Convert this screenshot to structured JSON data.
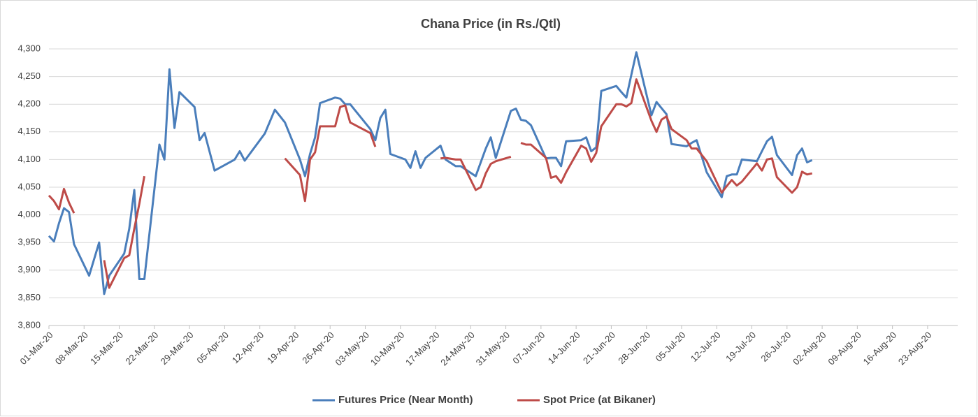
{
  "chart_data": {
    "type": "line",
    "title": "Chana Price (in Rs./Qtl)",
    "x": [
      "2020-03-01",
      "2020-03-02",
      "2020-03-03",
      "2020-03-04",
      "2020-03-05",
      "2020-03-06",
      "2020-03-09",
      "2020-03-11",
      "2020-03-12",
      "2020-03-13",
      "2020-03-16",
      "2020-03-17",
      "2020-03-18",
      "2020-03-19",
      "2020-03-20",
      "2020-03-23",
      "2020-03-24",
      "2020-03-25",
      "2020-03-26",
      "2020-03-27",
      "2020-03-30",
      "2020-03-31",
      "2020-04-01",
      "2020-04-03",
      "2020-04-07",
      "2020-04-08",
      "2020-04-09",
      "2020-04-13",
      "2020-04-15",
      "2020-04-17",
      "2020-04-20",
      "2020-04-21",
      "2020-04-22",
      "2020-04-23",
      "2020-04-24",
      "2020-04-27",
      "2020-04-28",
      "2020-04-29",
      "2020-04-30",
      "2020-05-04",
      "2020-05-05",
      "2020-05-06",
      "2020-05-07",
      "2020-05-08",
      "2020-05-11",
      "2020-05-12",
      "2020-05-13",
      "2020-05-14",
      "2020-05-15",
      "2020-05-18",
      "2020-05-19",
      "2020-05-21",
      "2020-05-22",
      "2020-05-25",
      "2020-05-26",
      "2020-05-27",
      "2020-05-28",
      "2020-05-29",
      "2020-06-01",
      "2020-06-02",
      "2020-06-03",
      "2020-06-04",
      "2020-06-05",
      "2020-06-08",
      "2020-06-09",
      "2020-06-10",
      "2020-06-11",
      "2020-06-12",
      "2020-06-15",
      "2020-06-16",
      "2020-06-17",
      "2020-06-18",
      "2020-06-19",
      "2020-06-22",
      "2020-06-23",
      "2020-06-24",
      "2020-06-25",
      "2020-06-26",
      "2020-06-29",
      "2020-06-30",
      "2020-07-01",
      "2020-07-02",
      "2020-07-03",
      "2020-07-06",
      "2020-07-07",
      "2020-07-08",
      "2020-07-10",
      "2020-07-13",
      "2020-07-14",
      "2020-07-15",
      "2020-07-16",
      "2020-07-17",
      "2020-07-20",
      "2020-07-21",
      "2020-07-22",
      "2020-07-23",
      "2020-07-24",
      "2020-07-27",
      "2020-07-28",
      "2020-07-29",
      "2020-07-30",
      "2020-07-31"
    ],
    "series": [
      {
        "name": "Futures Price (Near Month)",
        "color": "#4a7ebb",
        "values": [
          3962,
          3952,
          3985,
          4012,
          4005,
          3947,
          3890,
          3950,
          3857,
          3890,
          3930,
          3975,
          4045,
          3884,
          3884,
          4127,
          4100,
          4263,
          4157,
          4222,
          4195,
          4135,
          4148,
          4080,
          4100,
          4115,
          4098,
          4147,
          4190,
          4167,
          4100,
          4070,
          4110,
          4140,
          4202,
          4212,
          4210,
          4200,
          4200,
          4155,
          4135,
          4175,
          4190,
          4110,
          4100,
          4085,
          4115,
          4085,
          4103,
          4125,
          4100,
          4088,
          4088,
          4070,
          4095,
          4120,
          4140,
          4103,
          4188,
          4192,
          4172,
          4170,
          4162,
          4102,
          4103,
          4103,
          4088,
          4133,
          4135,
          4140,
          4115,
          4122,
          4224,
          4233,
          4222,
          4212,
          4253,
          4294,
          4180,
          4204,
          4193,
          4182,
          4128,
          4124,
          4130,
          4135,
          4077,
          4032,
          4070,
          4073,
          4073,
          4100,
          4097,
          4115,
          4133,
          4141,
          4108,
          4072,
          4108,
          4120,
          4095,
          4099
        ]
      },
      {
        "name": "Spot Price  (at Bikaner)",
        "color": "#be4b48",
        "values": [
          4035,
          4025,
          4010,
          4047,
          4022,
          4003,
          null,
          null,
          3918,
          3868,
          3922,
          3927,
          3975,
          4020,
          4070,
          null,
          null,
          null,
          null,
          null,
          null,
          null,
          null,
          null,
          null,
          null,
          null,
          null,
          null,
          4102,
          4072,
          4025,
          4100,
          4113,
          4160,
          4160,
          4195,
          4198,
          4167,
          4148,
          4123,
          null,
          null,
          null,
          null,
          null,
          null,
          null,
          null,
          4102,
          4103,
          4100,
          4100,
          4045,
          4050,
          4075,
          4092,
          4097,
          4105,
          null,
          4130,
          4127,
          4127,
          4103,
          4067,
          4070,
          4058,
          4077,
          4125,
          4120,
          4096,
          4112,
          4160,
          4200,
          4200,
          4196,
          4202,
          4245,
          4170,
          4150,
          4172,
          4178,
          4155,
          4135,
          4120,
          4120,
          4097,
          4040,
          4052,
          4063,
          4053,
          4060,
          4093,
          4080,
          4100,
          4102,
          4068,
          4040,
          4050,
          4078,
          4073,
          4075
        ]
      }
    ],
    "xlim": [
      "2020-03-01",
      "2020-08-29"
    ],
    "xticks": [
      {
        "value": "2020-03-01",
        "label": "01-Mar-20"
      },
      {
        "value": "2020-03-08",
        "label": "08-Mar-20"
      },
      {
        "value": "2020-03-15",
        "label": "15-Mar-20"
      },
      {
        "value": "2020-03-22",
        "label": "22-Mar-20"
      },
      {
        "value": "2020-03-29",
        "label": "29-Mar-20"
      },
      {
        "value": "2020-04-05",
        "label": "05-Apr-20"
      },
      {
        "value": "2020-04-12",
        "label": "12-Apr-20"
      },
      {
        "value": "2020-04-19",
        "label": "19-Apr-20"
      },
      {
        "value": "2020-04-26",
        "label": "26-Apr-20"
      },
      {
        "value": "2020-05-03",
        "label": "03-May-20"
      },
      {
        "value": "2020-05-10",
        "label": "10-May-20"
      },
      {
        "value": "2020-05-17",
        "label": "17-May-20"
      },
      {
        "value": "2020-05-24",
        "label": "24-May-20"
      },
      {
        "value": "2020-05-31",
        "label": "31-May-20"
      },
      {
        "value": "2020-06-07",
        "label": "07-Jun-20"
      },
      {
        "value": "2020-06-14",
        "label": "14-Jun-20"
      },
      {
        "value": "2020-06-21",
        "label": "21-Jun-20"
      },
      {
        "value": "2020-06-28",
        "label": "28-Jun-20"
      },
      {
        "value": "2020-07-05",
        "label": "05-Jul-20"
      },
      {
        "value": "2020-07-12",
        "label": "12-Jul-20"
      },
      {
        "value": "2020-07-19",
        "label": "19-Jul-20"
      },
      {
        "value": "2020-07-26",
        "label": "26-Jul-20"
      },
      {
        "value": "2020-08-02",
        "label": "02-Aug-20"
      },
      {
        "value": "2020-08-09",
        "label": "09-Aug-20"
      },
      {
        "value": "2020-08-16",
        "label": "16-Aug-20"
      },
      {
        "value": "2020-08-23",
        "label": "23-Aug-20"
      }
    ],
    "ylim": [
      3800,
      4300
    ],
    "yticks": [
      {
        "value": 3800,
        "label": "3,800"
      },
      {
        "value": 3850,
        "label": "3,850"
      },
      {
        "value": 3900,
        "label": "3,900"
      },
      {
        "value": 3950,
        "label": "3,950"
      },
      {
        "value": 4000,
        "label": "4,000"
      },
      {
        "value": 4050,
        "label": "4,050"
      },
      {
        "value": 4100,
        "label": "4,100"
      },
      {
        "value": 4150,
        "label": "4,150"
      },
      {
        "value": 4200,
        "label": "4,200"
      },
      {
        "value": 4250,
        "label": "4,250"
      },
      {
        "value": 4300,
        "label": "4,300"
      }
    ],
    "grid": true,
    "legend": "bottom"
  }
}
